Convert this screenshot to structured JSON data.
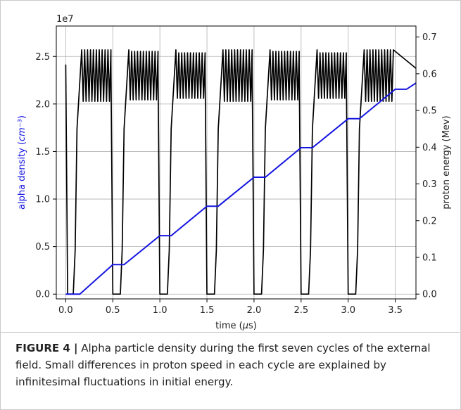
{
  "chart_data": {
    "type": "line",
    "xlabel": "time (μs)",
    "ylabel_left": "alpha density (cm⁻³)",
    "ylabel_right": "proton energy (Mev)",
    "offset_label": "1e7",
    "xlim": [
      -0.1,
      3.72
    ],
    "ylim_left": [
      -0.05,
      2.82
    ],
    "ylim_right": [
      -0.013,
      0.73
    ],
    "x_ticks": [
      0.0,
      0.5,
      1.0,
      1.5,
      2.0,
      2.5,
      3.0,
      3.5
    ],
    "x_tick_labels": [
      "0.0",
      "0.5",
      "1.0",
      "1.5",
      "2.0",
      "2.5",
      "3.0",
      "3.5"
    ],
    "y_left_ticks": [
      0.0,
      0.5,
      1.0,
      1.5,
      2.0,
      2.5
    ],
    "y_left_tick_labels": [
      "0.0",
      "0.5",
      "1.0",
      "1.5",
      "2.0",
      "2.5"
    ],
    "y_right_ticks": [
      0.0,
      0.1,
      0.2,
      0.3,
      0.4,
      0.5,
      0.6,
      0.7
    ],
    "y_right_tick_labels": [
      "0.0",
      "0.1",
      "0.2",
      "0.3",
      "0.4",
      "0.5",
      "0.6",
      "0.7"
    ],
    "grid": true,
    "series": [
      {
        "axis": "left",
        "color": "#1515e0",
        "x": [
          0.0,
          0.15,
          0.5,
          0.62,
          1.0,
          1.12,
          1.5,
          1.62,
          2.0,
          2.12,
          2.5,
          2.62,
          3.0,
          3.12,
          3.5,
          3.62,
          3.72
        ],
        "y": [
          0.0,
          0.0,
          0.31,
          0.31,
          0.615,
          0.615,
          0.925,
          0.925,
          1.23,
          1.23,
          1.54,
          1.54,
          1.845,
          1.845,
          2.155,
          2.155,
          2.22
        ]
      },
      {
        "axis": "right",
        "color": "#000000",
        "cycle_period": 0.5,
        "cycles": 7,
        "peak_energy": 0.665,
        "trough_energy": 0.525,
        "oscillations_per_cycle": 10,
        "initial_energy": 0.625
      }
    ]
  },
  "caption": {
    "label": "FIGURE 4 |",
    "text": " Alpha particle density during the first seven cycles of the external field. Small differences in proton speed in each cycle are explained by infinitesimal fluctuations in initial energy."
  }
}
